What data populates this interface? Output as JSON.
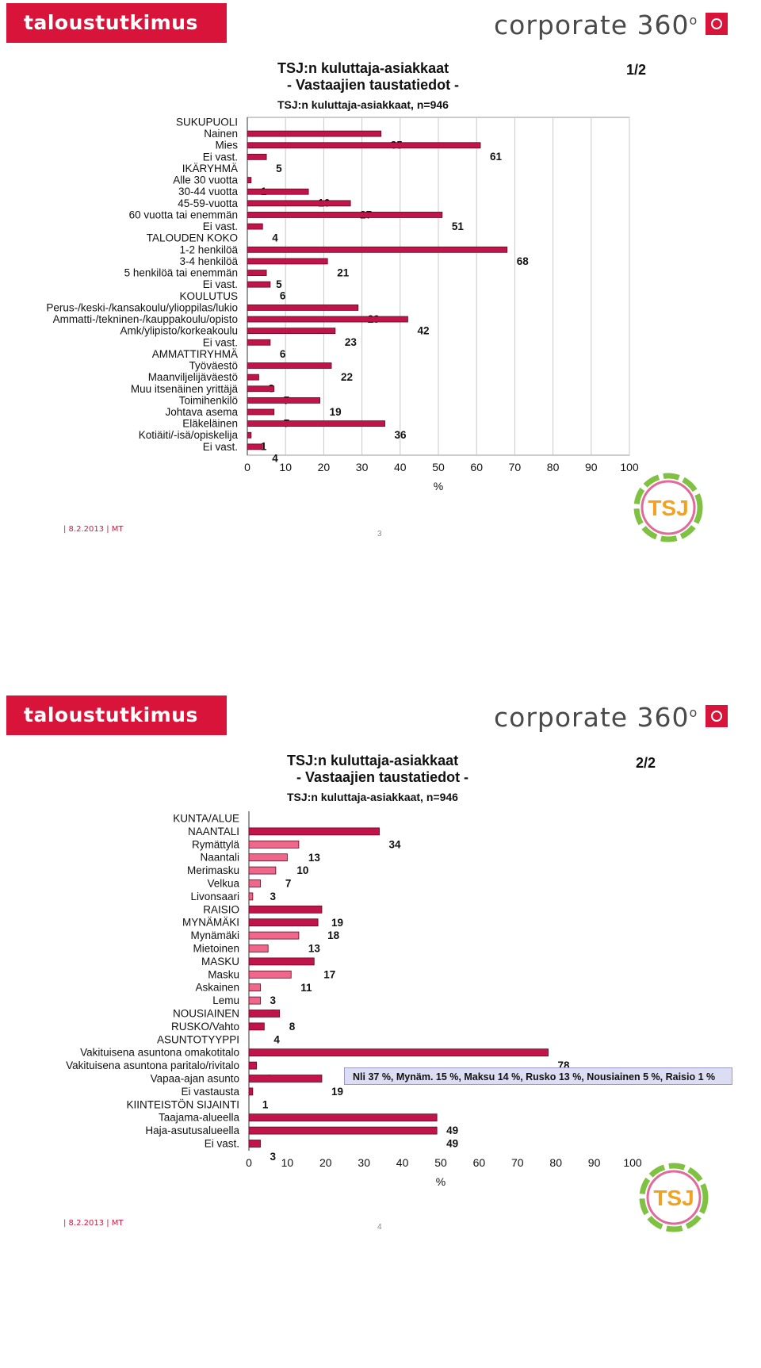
{
  "slides": [
    {
      "brand_left": "taloustutkimus oy",
      "brand_right": "corporate 360",
      "brand_right_sup": "o",
      "title_line1": "TSJ:n kuluttaja-asiakkaat",
      "title_line2": "- Vastaajien taustatiedot -",
      "subtitle": "TSJ:n kuluttaja-asiakkaat, n=946",
      "page_indicator": "1/2",
      "footer_date": "| 8.2.2013  | MT",
      "footer_page": "3",
      "logo_text": "TSJ"
    },
    {
      "brand_left": "taloustutkimus oy",
      "brand_right": "corporate 360",
      "brand_right_sup": "o",
      "title_line1": "TSJ:n kuluttaja-asiakkaat",
      "title_line2": "- Vastaajien taustatiedot -",
      "subtitle": "TSJ:n kuluttaja-asiakkaat, n=946",
      "page_indicator": "2/2",
      "footer_date": "| 8.2.2013  | MT",
      "footer_page": "4",
      "logo_text": "TSJ",
      "note": "Nli 37 %, Mynäm. 15 %, Maksu 14 %, Rusko 13 %, Nousiainen 5 %, Raisio 1 %"
    }
  ],
  "chart_data": [
    {
      "type": "bar",
      "orientation": "horizontal",
      "xlabel": "%",
      "xlim": [
        0,
        100
      ],
      "xticks": [
        "0",
        "10",
        "20",
        "30",
        "40",
        "50",
        "60",
        "70",
        "80",
        "90",
        "100"
      ],
      "grid": true,
      "rows": [
        {
          "label": "SUKUPUOLI",
          "value": null
        },
        {
          "label": "Nainen",
          "value": 35
        },
        {
          "label": "Mies",
          "value": 61
        },
        {
          "label": "Ei vast.",
          "value": 5
        },
        {
          "label": "IKÄRYHMÄ",
          "value": null
        },
        {
          "label": "Alle 30 vuotta",
          "value": 1
        },
        {
          "label": "30-44 vuotta",
          "value": 16
        },
        {
          "label": "45-59-vuotta",
          "value": 27
        },
        {
          "label": "60 vuotta tai enemmän",
          "value": 51
        },
        {
          "label": "Ei vast.",
          "value": 4
        },
        {
          "label": "TALOUDEN KOKO",
          "value": null
        },
        {
          "label": "1-2 henkilöä",
          "value": 68
        },
        {
          "label": "3-4 henkilöä",
          "value": 21
        },
        {
          "label": "5 henkilöä tai enemmän",
          "value": 5
        },
        {
          "label": "Ei vast.",
          "value": 6
        },
        {
          "label": "KOULUTUS",
          "value": null
        },
        {
          "label": "Perus-/keski-/kansakoulu/ylioppilas/lukio",
          "value": 29
        },
        {
          "label": "Ammatti-/tekninen-/kauppakoulu/opisto",
          "value": 42
        },
        {
          "label": "Amk/ylipisto/korkeakoulu",
          "value": 23
        },
        {
          "label": "Ei vast.",
          "value": 6
        },
        {
          "label": "AMMATTIRYHMÄ",
          "value": null
        },
        {
          "label": "Työväestö",
          "value": 22
        },
        {
          "label": "Maanviljelijäväestö",
          "value": 3
        },
        {
          "label": "Muu itsenäinen yrittäjä",
          "value": 7
        },
        {
          "label": "Toimihenkilö",
          "value": 19
        },
        {
          "label": "Johtava asema",
          "value": 7
        },
        {
          "label": "Eläkeläinen",
          "value": 36
        },
        {
          "label": "Kotiäiti/-isä/opiskelija",
          "value": 1
        },
        {
          "label": "Ei vast.",
          "value": 4
        }
      ]
    },
    {
      "type": "bar",
      "orientation": "horizontal",
      "xlabel": "%",
      "xlim": [
        0,
        100
      ],
      "xticks": [
        "0",
        "10",
        "20",
        "30",
        "40",
        "50",
        "60",
        "70",
        "80",
        "90",
        "100"
      ],
      "grid": false,
      "colors": {
        "main": "#c0144a",
        "sub": "#f0678c"
      },
      "rows": [
        {
          "label": "KUNTA/ALUE",
          "value": null
        },
        {
          "label": "NAANTALI",
          "value": 34,
          "kind": "main"
        },
        {
          "label": "Rymättylä",
          "value": 13,
          "kind": "sub"
        },
        {
          "label": "Naantali",
          "value": 10,
          "kind": "sub"
        },
        {
          "label": "Merimasku",
          "value": 7,
          "kind": "sub"
        },
        {
          "label": "Velkua",
          "value": 3,
          "kind": "sub"
        },
        {
          "label": "Livonsaari",
          "value": 1,
          "kind": "sub"
        },
        {
          "label": "RAISIO",
          "value": 19,
          "kind": "main"
        },
        {
          "label": "MYNÄMÄKI",
          "value": 18,
          "kind": "main"
        },
        {
          "label": "Mynämäki",
          "value": 13,
          "kind": "sub"
        },
        {
          "label": "Mietoinen",
          "value": 5,
          "kind": "sub"
        },
        {
          "label": "MASKU",
          "value": 17,
          "kind": "main"
        },
        {
          "label": "Masku",
          "value": 11,
          "kind": "sub"
        },
        {
          "label": "Askainen",
          "value": 3,
          "kind": "sub"
        },
        {
          "label": "Lemu",
          "value": 3,
          "kind": "sub"
        },
        {
          "label": "NOUSIAINEN",
          "value": 8,
          "kind": "main"
        },
        {
          "label": "RUSKO/Vahto",
          "value": 4,
          "kind": "main"
        },
        {
          "label": "ASUNTOTYYPPI",
          "value": null
        },
        {
          "label": "Vakituisena asuntona omakotitalo",
          "value": 78,
          "kind": "main"
        },
        {
          "label": "Vakituisena asuntona paritalo/rivitalo",
          "value": 2,
          "kind": "main"
        },
        {
          "label": "Vapaa-ajan asunto",
          "value": 19,
          "kind": "main"
        },
        {
          "label": "Ei vastausta",
          "value": 1,
          "kind": "main"
        },
        {
          "label": "KIINTEISTÖN SIJAINTI",
          "value": null
        },
        {
          "label": "Taajama-alueella",
          "value": 49,
          "kind": "main"
        },
        {
          "label": "Haja-asutusalueella",
          "value": 49,
          "kind": "main"
        },
        {
          "label": "Ei vast.",
          "value": 3,
          "kind": "main"
        }
      ]
    }
  ]
}
